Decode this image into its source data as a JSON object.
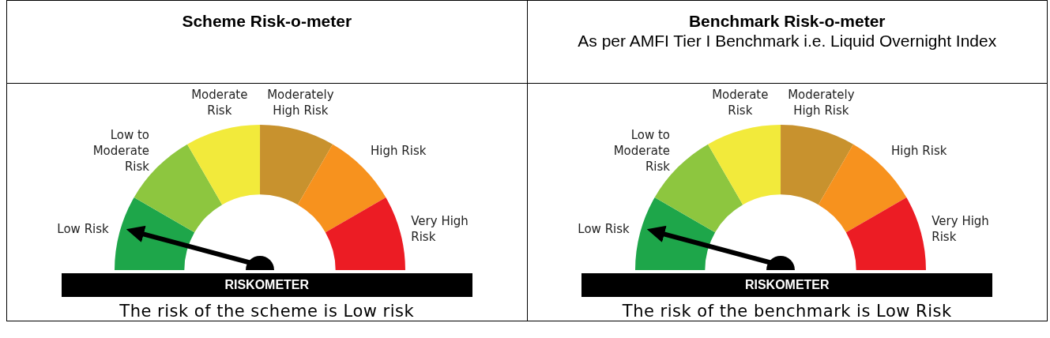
{
  "chart_data": [
    {
      "type": "donut",
      "title": "Scheme Risk-o-meter",
      "categories": [
        "Low Risk",
        "Low to Moderate Risk",
        "Moderate Risk",
        "Moderately High Risk",
        "High Risk",
        "Very High Risk"
      ],
      "values": [
        16.67,
        16.67,
        16.67,
        16.67,
        16.66,
        16.66
      ],
      "colors": [
        "#1ea64a",
        "#8dc63f",
        "#f2ea3b",
        "#c8922e",
        "#f7921e",
        "#ec1c24"
      ],
      "needle": "Low Risk",
      "annotations": [
        "RISKOMETER",
        "The risk of the scheme is Low risk"
      ]
    },
    {
      "type": "donut",
      "title": "Benchmark Risk-o-meter",
      "subtitle": "As per AMFI Tier I Benchmark i.e. Liquid Overnight Index",
      "categories": [
        "Low Risk",
        "Low to Moderate Risk",
        "Moderate Risk",
        "Moderately High Risk",
        "High Risk",
        "Very High Risk"
      ],
      "values": [
        16.67,
        16.67,
        16.67,
        16.67,
        16.66,
        16.66
      ],
      "colors": [
        "#1ea64a",
        "#8dc63f",
        "#f2ea3b",
        "#c8922e",
        "#f7921e",
        "#ec1c24"
      ],
      "needle": "Low Risk",
      "annotations": [
        "RISKOMETER",
        "The risk of the benchmark is Low Risk"
      ]
    }
  ]
}
